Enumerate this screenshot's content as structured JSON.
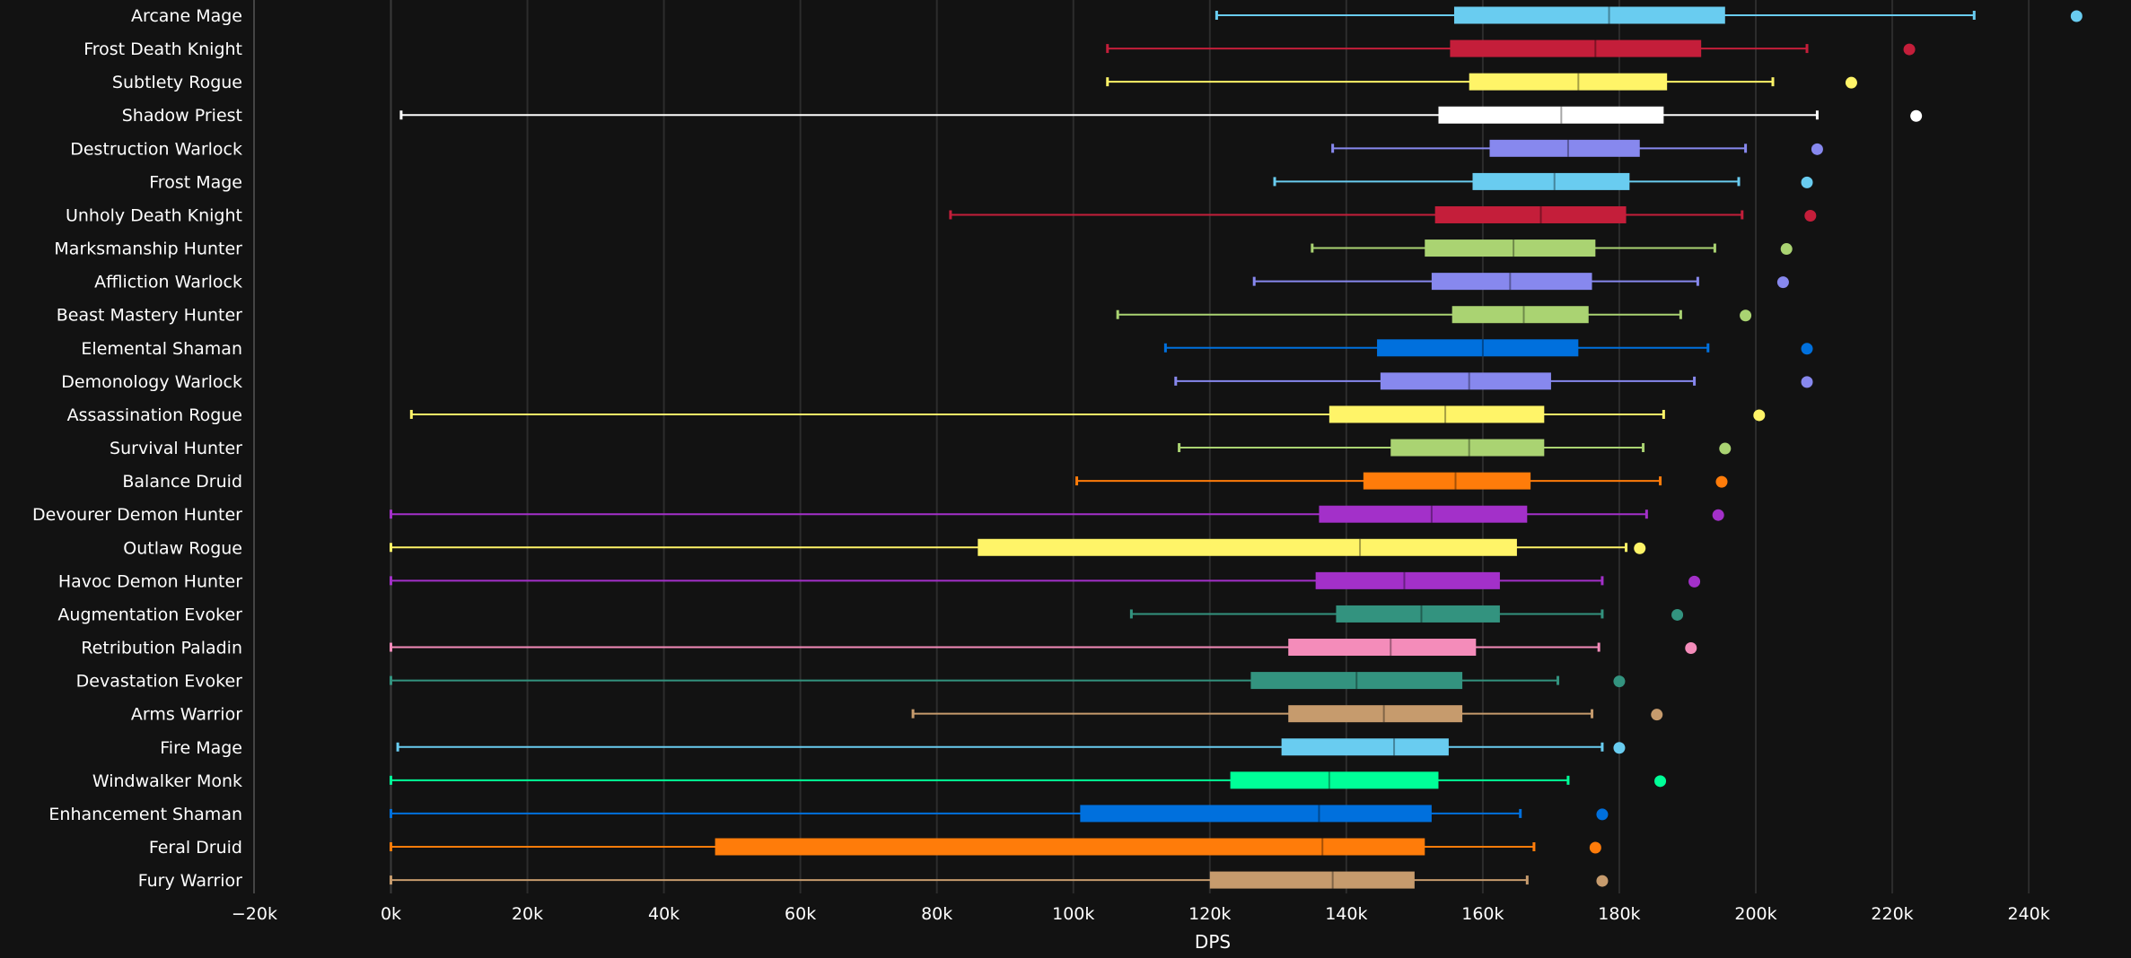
{
  "chart_data": {
    "type": "box",
    "orientation": "horizontal",
    "xlabel": "DPS",
    "xlim": [
      -20000,
      250000
    ],
    "x_ticks": [
      -20000,
      0,
      20000,
      40000,
      60000,
      80000,
      100000,
      120000,
      140000,
      160000,
      180000,
      200000,
      220000,
      240000
    ],
    "x_tick_labels": [
      "−20k",
      "0k",
      "20k",
      "40k",
      "60k",
      "80k",
      "100k",
      "120k",
      "140k",
      "160k",
      "180k",
      "200k",
      "220k",
      "240k"
    ],
    "grid": true,
    "legend": "none",
    "background": "#121212",
    "categories": [
      {
        "name": "Arcane Mage",
        "color": "#69ccf0",
        "min": 121000,
        "q1": 155800,
        "median": 178500,
        "q3": 195500,
        "max": 232000,
        "outlier": 247000
      },
      {
        "name": "Frost Death Knight",
        "color": "#c41e3a",
        "min": 105000,
        "q1": 155200,
        "median": 176500,
        "q3": 192000,
        "max": 207500,
        "outlier": 222500
      },
      {
        "name": "Subtlety Rogue",
        "color": "#fff468",
        "min": 105000,
        "q1": 158000,
        "median": 174000,
        "q3": 187000,
        "max": 202500,
        "outlier": 214000
      },
      {
        "name": "Shadow Priest",
        "color": "#ffffff",
        "min": 1500,
        "q1": 153500,
        "median": 171500,
        "q3": 186500,
        "max": 209000,
        "outlier": 223500
      },
      {
        "name": "Destruction Warlock",
        "color": "#8788ee",
        "min": 138000,
        "q1": 161000,
        "median": 172500,
        "q3": 183000,
        "max": 198500,
        "outlier": 209000
      },
      {
        "name": "Frost Mage",
        "color": "#69ccf0",
        "min": 129500,
        "q1": 158500,
        "median": 170500,
        "q3": 181500,
        "max": 197500,
        "outlier": 207500
      },
      {
        "name": "Unholy Death Knight",
        "color": "#c41e3a",
        "min": 82000,
        "q1": 153000,
        "median": 168500,
        "q3": 181000,
        "max": 198000,
        "outlier": 208000
      },
      {
        "name": "Marksmanship Hunter",
        "color": "#aad372",
        "min": 135000,
        "q1": 151500,
        "median": 164500,
        "q3": 176500,
        "max": 194000,
        "outlier": 204500
      },
      {
        "name": "Affliction Warlock",
        "color": "#8788ee",
        "min": 126500,
        "q1": 152500,
        "median": 164000,
        "q3": 176000,
        "max": 191500,
        "outlier": 204000
      },
      {
        "name": "Beast Mastery Hunter",
        "color": "#aad372",
        "min": 106500,
        "q1": 155500,
        "median": 166000,
        "q3": 175500,
        "max": 189000,
        "outlier": 198500
      },
      {
        "name": "Elemental Shaman",
        "color": "#0070dd",
        "min": 113500,
        "q1": 144500,
        "median": 160000,
        "q3": 174000,
        "max": 193000,
        "outlier": 207500
      },
      {
        "name": "Demonology Warlock",
        "color": "#8788ee",
        "min": 115000,
        "q1": 145000,
        "median": 158000,
        "q3": 170000,
        "max": 191000,
        "outlier": 207500
      },
      {
        "name": "Assassination Rogue",
        "color": "#fff468",
        "min": 3000,
        "q1": 137500,
        "median": 154500,
        "q3": 169000,
        "max": 186500,
        "outlier": 200500
      },
      {
        "name": "Survival Hunter",
        "color": "#aad372",
        "min": 115500,
        "q1": 146500,
        "median": 158000,
        "q3": 169000,
        "max": 183500,
        "outlier": 195500
      },
      {
        "name": "Balance Druid",
        "color": "#ff7c0a",
        "min": 100500,
        "q1": 142500,
        "median": 156000,
        "q3": 167000,
        "max": 186000,
        "outlier": 195000
      },
      {
        "name": "Devourer Demon Hunter",
        "color": "#a330c9",
        "min": 0,
        "q1": 136000,
        "median": 152500,
        "q3": 166500,
        "max": 184000,
        "outlier": 194500
      },
      {
        "name": "Outlaw Rogue",
        "color": "#fff468",
        "min": 0,
        "q1": 86000,
        "median": 142000,
        "q3": 165000,
        "max": 181000,
        "outlier": 183000
      },
      {
        "name": "Havoc Demon Hunter",
        "color": "#a330c9",
        "min": 0,
        "q1": 135500,
        "median": 148500,
        "q3": 162500,
        "max": 177500,
        "outlier": 191000
      },
      {
        "name": "Augmentation Evoker",
        "color": "#33937f",
        "min": 108500,
        "q1": 138500,
        "median": 151000,
        "q3": 162500,
        "max": 177500,
        "outlier": 188500
      },
      {
        "name": "Retribution Paladin",
        "color": "#f48cba",
        "min": 0,
        "q1": 131500,
        "median": 146500,
        "q3": 159000,
        "max": 177000,
        "outlier": 190500
      },
      {
        "name": "Devastation Evoker",
        "color": "#33937f",
        "min": 0,
        "q1": 126000,
        "median": 141500,
        "q3": 157000,
        "max": 171000,
        "outlier": 180000
      },
      {
        "name": "Arms Warrior",
        "color": "#c69b6d",
        "min": 76500,
        "q1": 131500,
        "median": 145500,
        "q3": 157000,
        "max": 176000,
        "outlier": 185500
      },
      {
        "name": "Fire Mage",
        "color": "#69ccf0",
        "min": 1000,
        "q1": 130500,
        "median": 147000,
        "q3": 155000,
        "max": 177500,
        "outlier": 180000
      },
      {
        "name": "Windwalker Monk",
        "color": "#00ff98",
        "min": 0,
        "q1": 123000,
        "median": 137500,
        "q3": 153500,
        "max": 172500,
        "outlier": 186000
      },
      {
        "name": "Enhancement Shaman",
        "color": "#0070dd",
        "min": 0,
        "q1": 101000,
        "median": 136000,
        "q3": 152500,
        "max": 165500,
        "outlier": 177500
      },
      {
        "name": "Feral Druid",
        "color": "#ff7c0a",
        "min": 0,
        "q1": 47500,
        "median": 136500,
        "q3": 151500,
        "max": 167500,
        "outlier": 176500
      },
      {
        "name": "Fury Warrior",
        "color": "#c69b6d",
        "min": 0,
        "q1": 120000,
        "median": 138000,
        "q3": 150000,
        "max": 166500,
        "outlier": 177500
      }
    ]
  }
}
